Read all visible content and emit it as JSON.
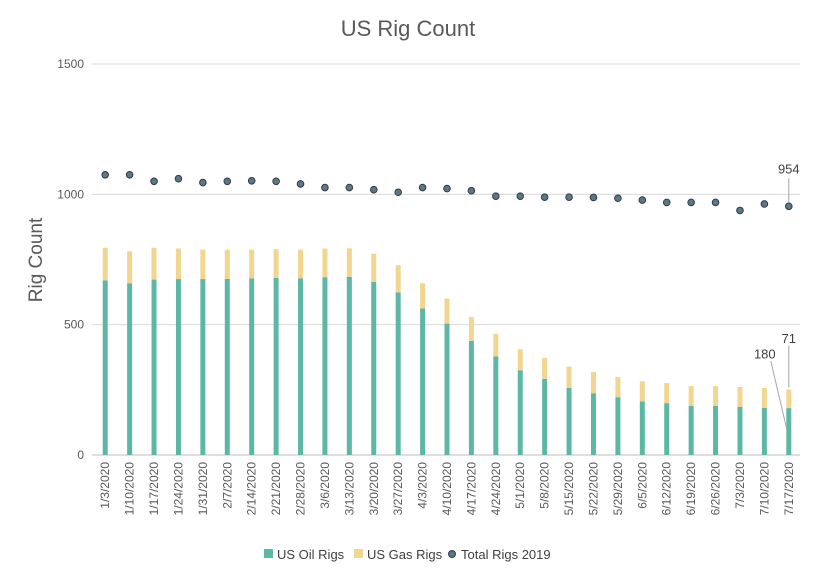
{
  "chart_data": {
    "type": "bar",
    "title": "US Rig Count",
    "ylabel": "Rig Count",
    "xlabel": "",
    "ylim": [
      0,
      1500
    ],
    "yticks": [
      0,
      500,
      1000,
      1500
    ],
    "grid": true,
    "legend_position": "bottom",
    "categories": [
      "1/3/2020",
      "1/10/2020",
      "1/17/2020",
      "1/24/2020",
      "1/31/2020",
      "2/7/2020",
      "2/14/2020",
      "2/21/2020",
      "2/28/2020",
      "3/6/2020",
      "3/13/2020",
      "3/20/2020",
      "3/27/2020",
      "4/3/2020",
      "4/10/2020",
      "4/17/2020",
      "4/24/2020",
      "5/1/2020",
      "5/8/2020",
      "5/15/2020",
      "5/22/2020",
      "5/29/2020",
      "6/5/2020",
      "6/12/2020",
      "6/19/2020",
      "6/26/2020",
      "7/3/2020",
      "7/10/2020",
      "7/17/2020"
    ],
    "series": [
      {
        "name": "US Oil Rigs",
        "kind": "bar-stacked",
        "color": "#5cb8a4",
        "values": [
          670,
          659,
          673,
          675,
          675,
          676,
          678,
          679,
          678,
          682,
          683,
          664,
          624,
          562,
          504,
          438,
          378,
          325,
          292,
          258,
          237,
          222,
          206,
          199,
          188,
          188,
          185,
          181,
          180
        ]
      },
      {
        "name": "US Gas Rigs",
        "kind": "bar-stacked",
        "color": "#f2d58f",
        "values": [
          125,
          122,
          122,
          117,
          113,
          112,
          110,
          111,
          110,
          110,
          110,
          108,
          104,
          97,
          96,
          91,
          87,
          81,
          80,
          81,
          81,
          77,
          77,
          77,
          76,
          76,
          76,
          76,
          71
        ]
      },
      {
        "name": "Total Rigs 2019",
        "kind": "scatter",
        "color": "#4a6470",
        "values": [
          1075,
          1075,
          1050,
          1060,
          1045,
          1050,
          1052,
          1050,
          1040,
          1026,
          1026,
          1018,
          1008,
          1026,
          1022,
          1014,
          993,
          993,
          989,
          989,
          988,
          985,
          978,
          969,
          969,
          969,
          938,
          963,
          954
        ]
      }
    ],
    "annotations": [
      {
        "text": "954",
        "series": "Total Rigs 2019",
        "index": 28
      },
      {
        "text": "180",
        "series": "US Oil Rigs",
        "index": 28
      },
      {
        "text": "71",
        "series": "US Gas Rigs",
        "index": 28
      }
    ]
  }
}
